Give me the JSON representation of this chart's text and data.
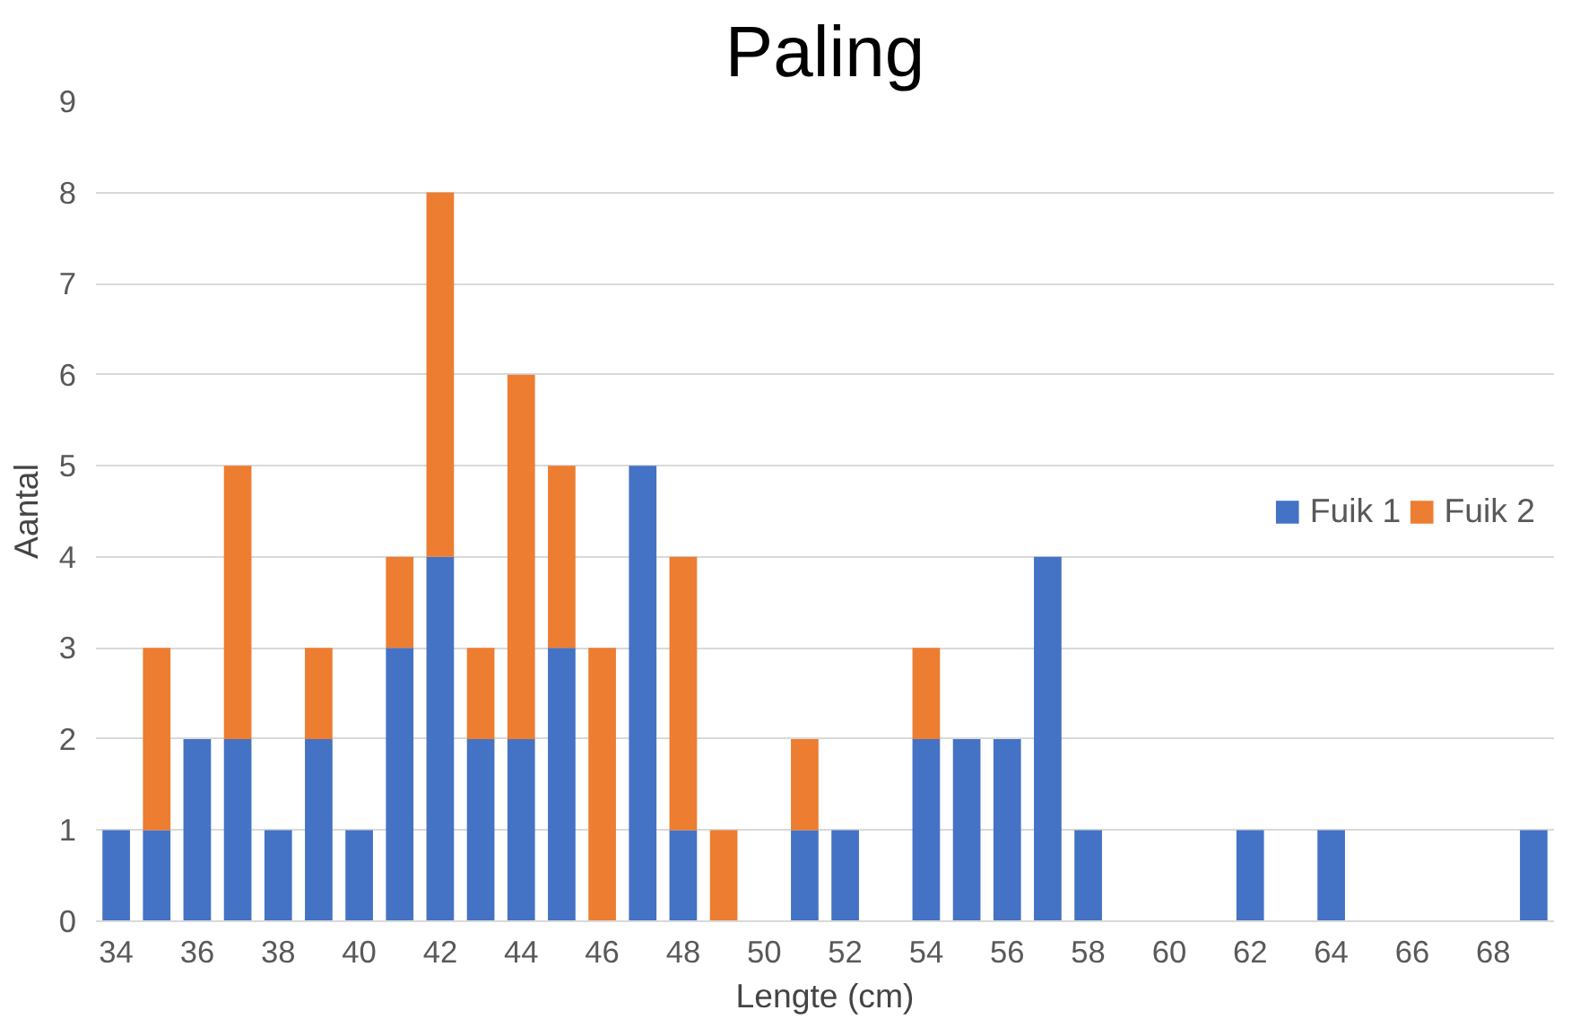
{
  "chart_data": {
    "type": "bar",
    "title": "Paling",
    "xlabel": "Lengte (cm)",
    "ylabel": "Aantal",
    "categories": [
      "34",
      null,
      "36",
      null,
      "38",
      null,
      "40",
      null,
      "42",
      null,
      "44",
      null,
      "46",
      null,
      "48",
      null,
      "50",
      null,
      "52",
      null,
      "54",
      null,
      "56",
      null,
      "58",
      null,
      "60",
      null,
      "62",
      null,
      "64",
      null,
      "66",
      null,
      "68",
      null
    ],
    "stacked": true,
    "series": [
      {
        "name": "Fuik 1",
        "color": "#4472c4",
        "values": [
          1,
          1,
          2,
          2,
          1,
          2,
          1,
          3,
          4,
          2,
          2,
          3,
          0,
          5,
          1,
          0,
          0,
          1,
          1,
          0,
          2,
          2,
          2,
          4,
          1,
          0,
          0,
          0,
          1,
          0,
          1,
          0,
          0,
          0,
          0,
          1
        ]
      },
      {
        "name": "Fuik 2",
        "color": "#ed7d31",
        "values": [
          0,
          2,
          0,
          3,
          0,
          1,
          0,
          1,
          4,
          1,
          4,
          2,
          3,
          0,
          3,
          1,
          0,
          1,
          0,
          0,
          1,
          0,
          0,
          0,
          0,
          0,
          0,
          0,
          0,
          0,
          0,
          0,
          0,
          0,
          0,
          0
        ]
      }
    ],
    "ylim": [
      0,
      9
    ],
    "yticks": [
      0,
      1,
      2,
      3,
      4,
      5,
      6,
      7,
      8,
      9
    ],
    "grid": "y",
    "legend": "right"
  }
}
